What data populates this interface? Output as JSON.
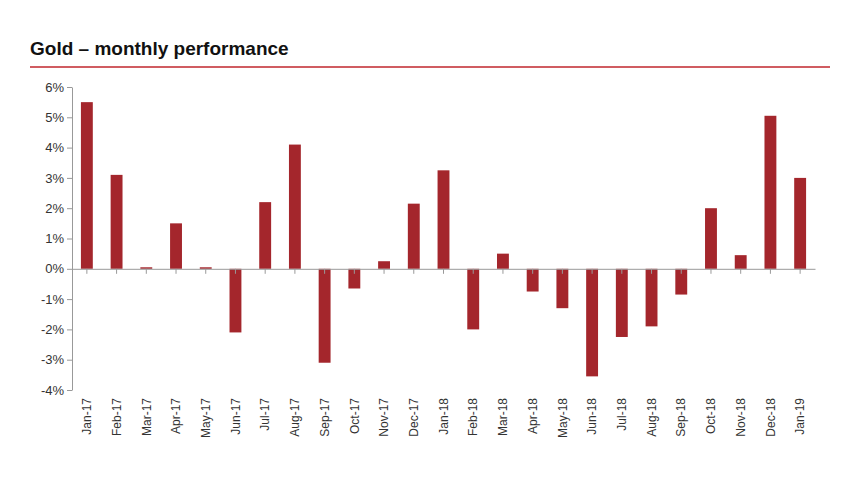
{
  "chart_data": {
    "type": "bar",
    "title": "Gold – monthly performance",
    "categories": [
      "Jan-17",
      "Feb-17",
      "Mar-17",
      "Apr-17",
      "May-17",
      "Jun-17",
      "Jul-17",
      "Aug-17",
      "Sep-17",
      "Oct-17",
      "Nov-17",
      "Dec-17",
      "Jan-18",
      "Feb-18",
      "Mar-18",
      "Apr-18",
      "May-18",
      "Jun-18",
      "Jul-18",
      "Aug-18",
      "Sep-18",
      "Oct-18",
      "Nov-18",
      "Dec-18",
      "Jan-19"
    ],
    "values": [
      5.5,
      3.1,
      0.05,
      1.5,
      0.05,
      -2.1,
      2.2,
      4.1,
      -3.1,
      -0.65,
      0.25,
      2.15,
      3.25,
      -2.0,
      0.5,
      -0.75,
      -1.3,
      -3.55,
      -2.25,
      -1.9,
      -0.85,
      2.0,
      0.45,
      5.05,
      3.0
    ],
    "color": "#a4262c",
    "ylim": [
      -4,
      6
    ],
    "yticks": [
      {
        "value": -4,
        "label": "-4%"
      },
      {
        "value": -3,
        "label": "-3%"
      },
      {
        "value": -2,
        "label": "-2%"
      },
      {
        "value": -1,
        "label": "-1%"
      },
      {
        "value": 0,
        "label": "0%"
      },
      {
        "value": 1,
        "label": "1%"
      },
      {
        "value": 2,
        "label": "2%"
      },
      {
        "value": 3,
        "label": "3%"
      },
      {
        "value": 4,
        "label": "4%"
      },
      {
        "value": 5,
        "label": "5%"
      },
      {
        "value": 6,
        "label": "6%"
      }
    ],
    "grid": false
  }
}
